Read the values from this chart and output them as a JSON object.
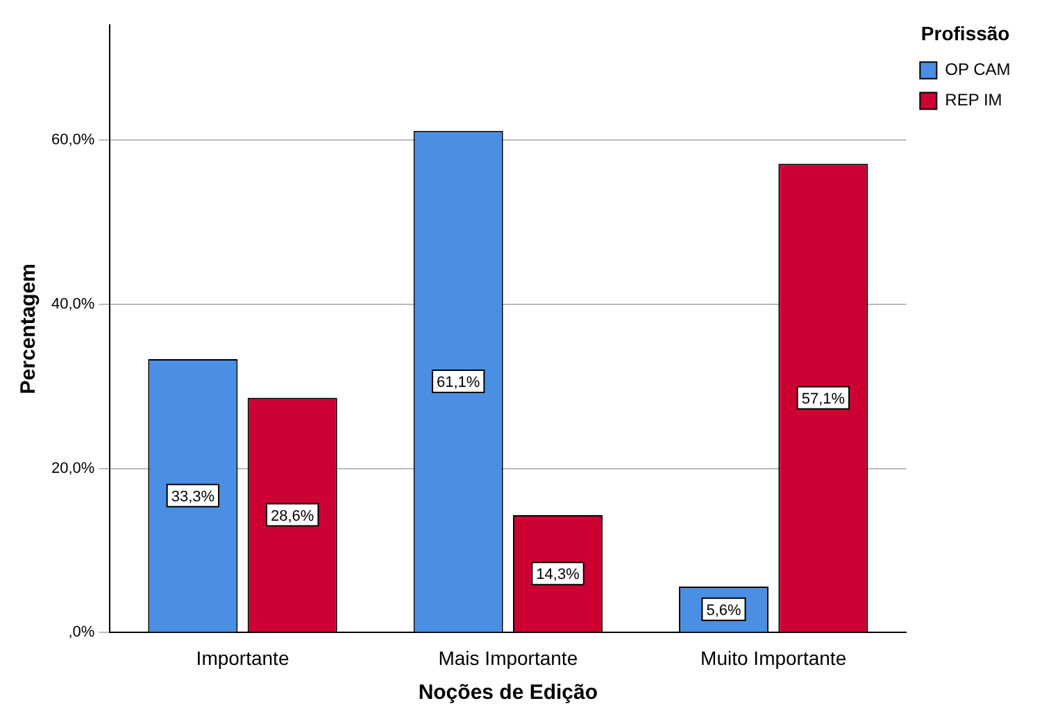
{
  "chart_data": {
    "type": "bar",
    "xlabel": "Noções de Edição",
    "ylabel": "Percentagem",
    "legend_title": "Profissão",
    "categories": [
      "Importante",
      "Mais Importante",
      "Muito Importante"
    ],
    "series": [
      {
        "name": "OP CAM",
        "color": "#4a8fe3",
        "values": [
          33.3,
          61.1,
          5.6
        ],
        "value_labels": [
          "33,3%",
          "61,1%",
          "5,6%"
        ]
      },
      {
        "name": "REP IM",
        "color": "#cc0033",
        "values": [
          28.6,
          14.3,
          57.1
        ],
        "value_labels": [
          "28,6%",
          "14,3%",
          "57,1%"
        ]
      }
    ],
    "ylim": [
      0,
      74
    ],
    "yticks": [
      {
        "value": 0,
        "label": ",0%"
      },
      {
        "value": 20,
        "label": "20,0%"
      },
      {
        "value": 40,
        "label": "40,0%"
      },
      {
        "value": 60,
        "label": "60,0%"
      }
    ],
    "grid": "y",
    "legend": "top right"
  }
}
